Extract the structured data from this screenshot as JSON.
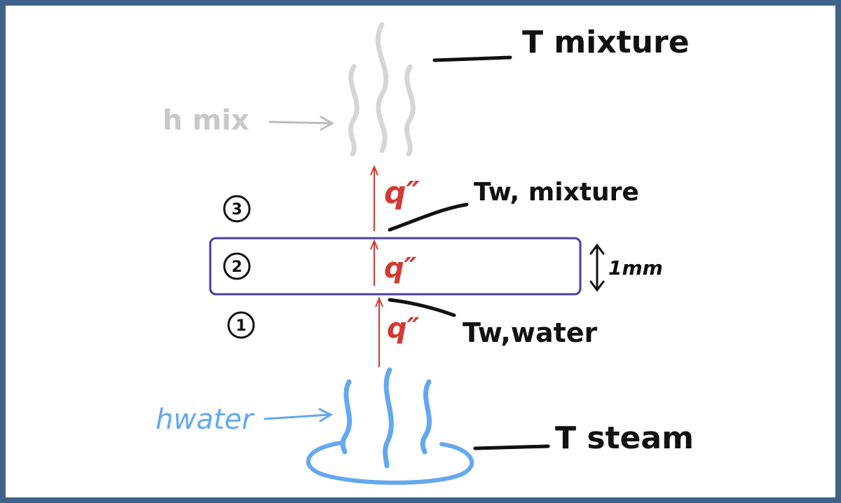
{
  "colors": {
    "frame": "#3f6388",
    "ink": "#111111",
    "heat_flux": "#d23a33",
    "wall": "#4a3fa6",
    "steam_vapor": "#64a8ee",
    "mixture_vapor": "#d6d6d6",
    "mixture_label": "#c8c8c8"
  },
  "labels": {
    "t_mixture": "T mixture",
    "h_mix": "h mix",
    "t_wall_mixture": "Tw, mixture",
    "t_wall_water": "Tw,water",
    "thickness": "1mm",
    "h_water": "hwater",
    "t_steam": "T steam"
  },
  "heat_flux": {
    "top": "q″",
    "middle": "q″",
    "bottom": "q″"
  },
  "regions": [
    "1",
    "2",
    "3"
  ],
  "icons": {
    "mixture_vapor": "rising-vapor-icon",
    "steam_vapor": "rising-steam-icon",
    "boiling_pool": "water-pool-icon"
  }
}
